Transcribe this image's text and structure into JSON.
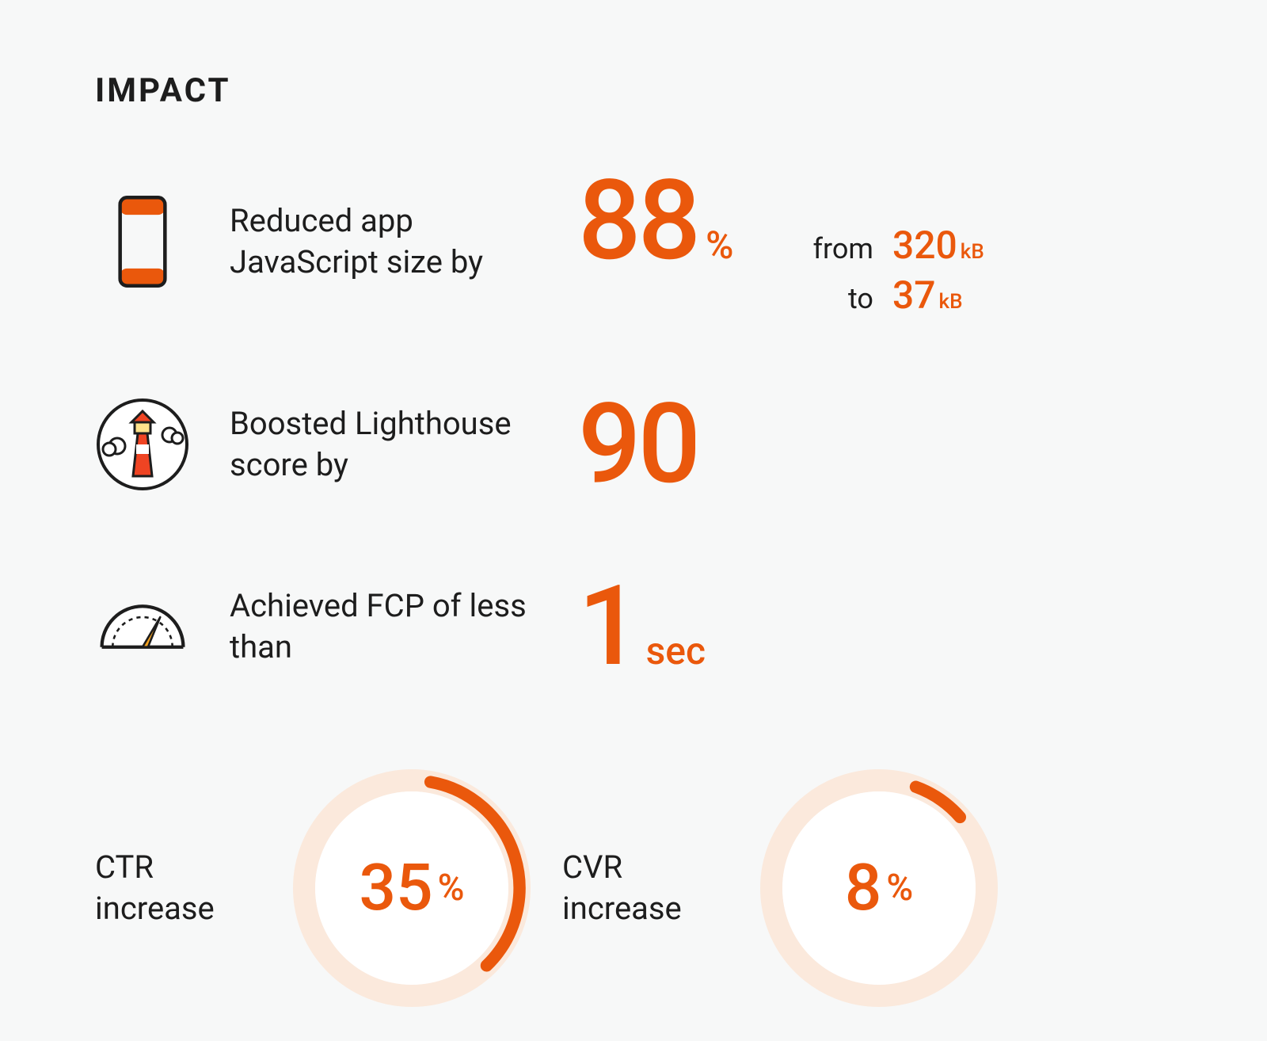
{
  "colors": {
    "accent": "#ea580c",
    "track": "#fbe9dc",
    "inner": "#ffffff",
    "background": "#f7f8f8",
    "text": "#1d1d1d"
  },
  "title": "IMPACT",
  "rows": [
    {
      "icon": "phone",
      "desc": "Reduced app JavaScript size by",
      "value": "88",
      "unit": "%",
      "from_label": "from",
      "from_value": "320",
      "to_label": "to",
      "to_value": "37",
      "size_unit": "kB"
    },
    {
      "icon": "lighthouse",
      "desc": "Boosted Lighthouse score by",
      "value": "90",
      "unit": ""
    },
    {
      "icon": "gauge",
      "desc": "Achieved FCP of less than",
      "value": "1",
      "unit": "sec"
    }
  ],
  "donuts": [
    {
      "label": "CTR increase",
      "value": 35,
      "display": "35",
      "unit": "%",
      "start_deg": 10,
      "ring_width": 28
    },
    {
      "label": "CVR increase",
      "value": 8,
      "display": "8",
      "unit": "%",
      "start_deg": 20,
      "ring_width": 28
    }
  ],
  "typography": {
    "title_fontsize": 42,
    "desc_fontsize": 40,
    "big_num_fontsize": 140,
    "unit_fontsize": 48,
    "fromto_label_fontsize": 36,
    "fromto_value_fontsize": 48,
    "donut_label_fontsize": 40,
    "donut_num_fontsize": 82
  }
}
